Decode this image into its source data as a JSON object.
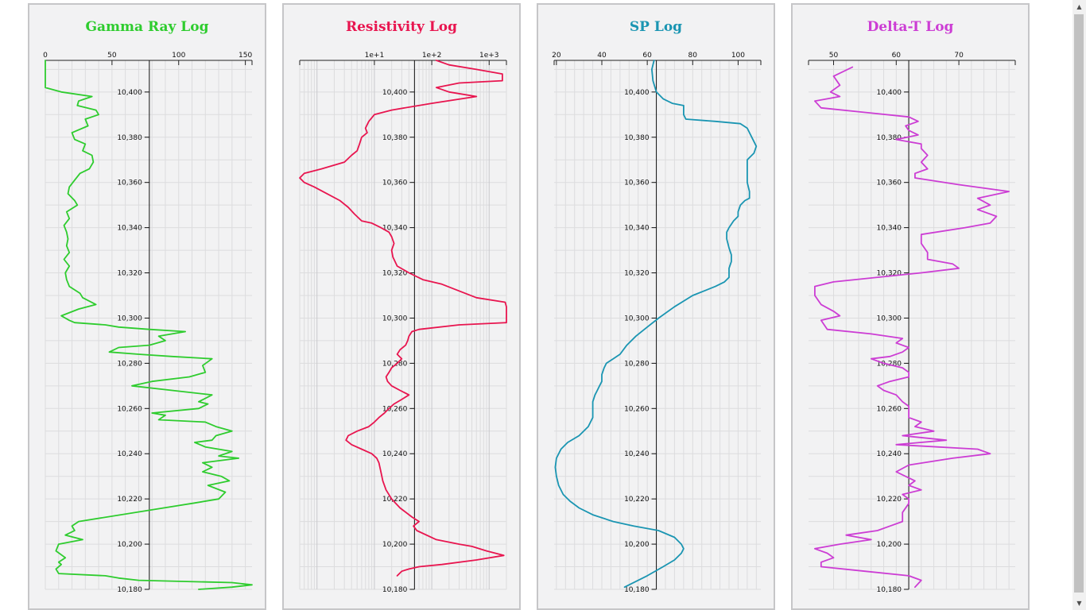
{
  "chart_data": [
    {
      "type": "line",
      "title": "Gamma Ray Log",
      "color": "#2ecc2e",
      "scale": "linear",
      "xlim": [
        0,
        155
      ],
      "x_ticks": [
        0,
        50,
        100,
        150
      ],
      "x_tick_labels": [
        "0",
        "50",
        "100",
        "150"
      ],
      "baseline": 78,
      "ylim": [
        10180,
        10414
      ],
      "y_ticks": [
        10180,
        10200,
        10220,
        10240,
        10260,
        10280,
        10300,
        10320,
        10340,
        10360,
        10380,
        10400
      ],
      "y_tick_labels": [
        "10,180",
        "10,200",
        "10,220",
        "10,240",
        "10,260",
        "10,280",
        "10,300",
        "10,320",
        "10,340",
        "10,360",
        "10,380",
        "10,400"
      ],
      "series": [
        {
          "x": [
            0,
            0,
            0,
            12,
            35,
            25,
            24,
            38,
            40,
            30,
            32,
            20,
            22,
            30,
            28,
            35,
            36,
            33,
            26,
            22,
            18,
            17,
            22,
            24,
            16,
            18,
            14,
            16,
            17,
            16,
            18,
            14,
            18,
            15,
            16,
            18,
            26,
            28,
            38,
            25,
            12,
            18,
            22,
            45,
            55,
            78,
            105,
            85,
            90,
            78,
            55,
            48,
            70,
            95,
            125,
            118,
            120,
            108,
            80,
            65,
            95,
            125,
            115,
            122,
            115,
            80,
            90,
            85,
            120,
            128,
            140,
            128,
            125,
            112,
            120,
            140,
            130,
            145,
            118,
            125,
            118,
            132,
            138,
            122,
            135,
            130,
            110,
            25,
            20,
            22,
            15,
            28,
            10,
            8,
            15,
            10,
            12,
            8,
            10,
            45,
            55,
            70,
            140,
            155,
            140,
            115
          ],
          "y": [
            10414,
            10408,
            10402,
            10400,
            10398,
            10396,
            10394,
            10392,
            10390,
            10388,
            10385,
            10382,
            10379,
            10377,
            10374,
            10372,
            10369,
            10366,
            10364,
            10361,
            10358,
            10355,
            10352,
            10350,
            10347,
            10344,
            10341,
            10338,
            10335,
            10332,
            10329,
            10326,
            10323,
            10320,
            10317,
            10314,
            10311,
            10309,
            10306,
            10304,
            10301,
            10299,
            10298,
            10297,
            10296,
            10295,
            10294,
            10292,
            10290,
            10288,
            10287,
            10285,
            10284,
            10283,
            10282,
            10279,
            10276,
            10274,
            10272,
            10270,
            10268,
            10266,
            10263,
            10262,
            10260,
            10258,
            10257,
            10255,
            10254,
            10252,
            10250,
            10248,
            10246,
            10245,
            10243,
            10241,
            10239,
            10238,
            10236,
            10234,
            10232,
            10230,
            10228,
            10226,
            10223,
            10220,
            10218,
            10210,
            10208,
            10206,
            10204,
            10202,
            10200,
            10197,
            10194,
            10192,
            10191,
            10189,
            10187,
            10186,
            10185,
            10184,
            10183,
            10182,
            10181,
            10180
          ]
        }
      ]
    },
    {
      "type": "line",
      "title": "Resistivity Log",
      "color": "#e8154f",
      "scale": "log",
      "xlim": [
        0.5,
        2000
      ],
      "x_ticks": [
        10,
        100,
        1000
      ],
      "x_tick_labels": [
        "1e+1",
        "1e+2",
        "1e+3"
      ],
      "baseline": 50,
      "ylim": [
        10180,
        10414
      ],
      "y_ticks": [
        10180,
        10200,
        10220,
        10240,
        10260,
        10280,
        10300,
        10320,
        10340,
        10360,
        10380,
        10400
      ],
      "y_tick_labels": [
        "10,180",
        "10,200",
        "10,220",
        "10,240",
        "10,260",
        "10,280",
        "10,300",
        "10,320",
        "10,340",
        "10,360",
        "10,380",
        "10,400"
      ],
      "series": [
        {
          "x": [
            120,
            200,
            600,
            1700,
            1700,
            300,
            120,
            200,
            600,
            100,
            20,
            10,
            8,
            7,
            7.5,
            6,
            5.5,
            5,
            4,
            3,
            1.2,
            0.6,
            0.5,
            0.6,
            0.9,
            1.5,
            2.5,
            3.5,
            4.5,
            6,
            9,
            13,
            18,
            20,
            22,
            20,
            21,
            25,
            40,
            70,
            150,
            300,
            600,
            1900,
            2000,
            2000,
            300,
            60,
            45,
            40,
            38,
            35,
            28,
            25,
            30,
            25,
            20,
            18,
            16,
            17,
            20,
            28,
            40,
            30,
            22,
            18,
            15,
            12,
            10,
            8,
            5,
            3.5,
            3.2,
            4,
            6,
            9,
            11,
            12,
            13,
            14,
            16,
            20,
            28,
            45,
            60,
            48,
            55,
            120,
            300,
            500,
            900,
            1800,
            600,
            150,
            60,
            40,
            30,
            25
          ],
          "y": [
            10414,
            10412,
            10410,
            10408,
            10405,
            10404,
            10402,
            10400,
            10398,
            10395,
            10392,
            10390,
            10387,
            10384,
            10382,
            10380,
            10377,
            10374,
            10372,
            10369,
            10366,
            10364,
            10362,
            10360,
            10358,
            10355,
            10352,
            10349,
            10346,
            10343,
            10342,
            10340,
            10338,
            10336,
            10333,
            10330,
            10327,
            10323,
            10320,
            10317,
            10315,
            10312,
            10309,
            10307,
            10305,
            10298,
            10297,
            10295,
            10294,
            10292,
            10290,
            10288,
            10286,
            10284,
            10282,
            10280,
            10278,
            10276,
            10274,
            10272,
            10270,
            10268,
            10266,
            10264,
            10262,
            10260,
            10258,
            10256,
            10254,
            10252,
            10250,
            10248,
            10246,
            10244,
            10242,
            10240,
            10238,
            10236,
            10232,
            10228,
            10224,
            10220,
            10216,
            10212,
            10210,
            10208,
            10206,
            10202,
            10200,
            10199,
            10197,
            10195,
            10193,
            10191,
            10190,
            10189,
            10188,
            10186
          ]
        }
      ]
    },
    {
      "type": "line",
      "title": "SP Log",
      "color": "#1a95b2",
      "scale": "linear",
      "xlim": [
        19,
        110
      ],
      "x_ticks": [
        20,
        40,
        60,
        80,
        100
      ],
      "x_tick_labels": [
        "20",
        "40",
        "60",
        "80",
        "100"
      ],
      "baseline": 64,
      "ylim": [
        10180,
        10414
      ],
      "y_ticks": [
        10180,
        10200,
        10220,
        10240,
        10260,
        10280,
        10300,
        10320,
        10340,
        10360,
        10380,
        10400
      ],
      "y_tick_labels": [
        "10,180",
        "10,200",
        "10,220",
        "10,240",
        "10,260",
        "10,280",
        "10,300",
        "10,320",
        "10,340",
        "10,360",
        "10,380",
        "10,400"
      ],
      "series": [
        {
          "x": [
            63,
            62,
            62.5,
            64,
            67,
            71,
            76,
            76,
            77,
            90,
            101,
            104,
            106,
            108,
            107,
            104,
            104,
            104,
            105,
            105,
            103,
            101,
            100,
            100,
            98,
            96,
            95,
            95,
            96,
            97,
            97,
            96,
            96,
            94,
            90,
            80,
            72,
            65,
            60,
            55,
            51,
            48,
            45,
            42,
            41,
            40,
            40,
            39,
            38,
            37,
            36,
            36,
            36,
            34,
            30,
            25,
            22,
            20,
            19.5,
            20,
            21,
            23,
            26,
            30,
            36,
            45,
            54,
            65,
            72,
            75,
            76,
            75,
            72,
            67,
            60,
            50
          ],
          "y": [
            10414,
            10410,
            10405,
            10400,
            10397,
            10395,
            10394,
            10390,
            10388,
            10387,
            10386,
            10384,
            10380,
            10376,
            10373,
            10370,
            10365,
            10360,
            10356,
            10353,
            10352,
            10350,
            10347,
            10345,
            10343,
            10340,
            10338,
            10335,
            10331,
            10328,
            10325,
            10322,
            10318,
            10316,
            10314,
            10310,
            10305,
            10300,
            10296,
            10292,
            10288,
            10284,
            10282,
            10280,
            10278,
            10275,
            10272,
            10270,
            10268,
            10266,
            10263,
            10260,
            10256,
            10252,
            10248,
            10245,
            10242,
            10238,
            10234,
            10230,
            10226,
            10222,
            10219,
            10216,
            10213,
            10210,
            10208,
            10206,
            10203,
            10200,
            10198,
            10196,
            10193,
            10190,
            10186,
            10181
          ]
        }
      ]
    },
    {
      "type": "line",
      "title": "Delta-T Log",
      "color": "#cc3dd4",
      "scale": "linear",
      "xlim": [
        46,
        79
      ],
      "x_ticks": [
        50,
        60,
        70
      ],
      "x_tick_labels": [
        "50",
        "60",
        "70"
      ],
      "baseline": 62,
      "ylim": [
        10180,
        10414
      ],
      "y_ticks": [
        10180,
        10200,
        10220,
        10240,
        10260,
        10280,
        10300,
        10320,
        10340,
        10360,
        10380,
        10400
      ],
      "y_tick_labels": [
        "10,180",
        "10,200",
        "10,220",
        "10,240",
        "10,260",
        "10,280",
        "10,300",
        "10,320",
        "10,340",
        "10,360",
        "10,380",
        "10,400"
      ],
      "series": [
        {
          "x": [
            53,
            50,
            51,
            49.5,
            51,
            47,
            48,
            55,
            62,
            63.5,
            61.5,
            62,
            63.5,
            60,
            64,
            64,
            65,
            64,
            65,
            63,
            63,
            70,
            78,
            73,
            75,
            73,
            76,
            75,
            71,
            64,
            64,
            65,
            65,
            69,
            70,
            64,
            50,
            47,
            47,
            48,
            50,
            51,
            48,
            49,
            56,
            61,
            60,
            62,
            61,
            59,
            56,
            58,
            61,
            62,
            62,
            59,
            57,
            58,
            60,
            61,
            62,
            62,
            62,
            64,
            63,
            66,
            61,
            68,
            60,
            73,
            75,
            69,
            62,
            60,
            63,
            62,
            64,
            61,
            62,
            62,
            61,
            61,
            59,
            57,
            52,
            56,
            51,
            47,
            49,
            50,
            48,
            48,
            55,
            62,
            64,
            63
          ],
          "y": [
            10411,
            10407,
            10403,
            10400,
            10398,
            10396,
            10393,
            10391,
            10389,
            10387,
            10385,
            10383,
            10381,
            10379,
            10377,
            10375,
            10372,
            10369,
            10366,
            10364,
            10362,
            10359,
            10356,
            10353,
            10350,
            10348,
            10345,
            10342,
            10340,
            10337,
            10333,
            10329,
            10326,
            10324,
            10322,
            10320,
            10316,
            10314,
            10310,
            10306,
            10303,
            10301,
            10299,
            10295,
            10293,
            10291,
            10289,
            10287,
            10285,
            10283,
            10282,
            10280,
            10278,
            10276,
            10274,
            10272,
            10270,
            10268,
            10266,
            10263,
            10261,
            10258,
            10256,
            10254,
            10252,
            10250,
            10248,
            10246,
            10244,
            10242,
            10240,
            10238,
            10235,
            10232,
            10228,
            10226,
            10224,
            10222,
            10220,
            10218,
            10214,
            10210,
            10208,
            10206,
            10204,
            10202,
            10200,
            10198,
            10196,
            10194,
            10192,
            10190,
            10188,
            10186,
            10184,
            10181
          ]
        }
      ]
    }
  ]
}
